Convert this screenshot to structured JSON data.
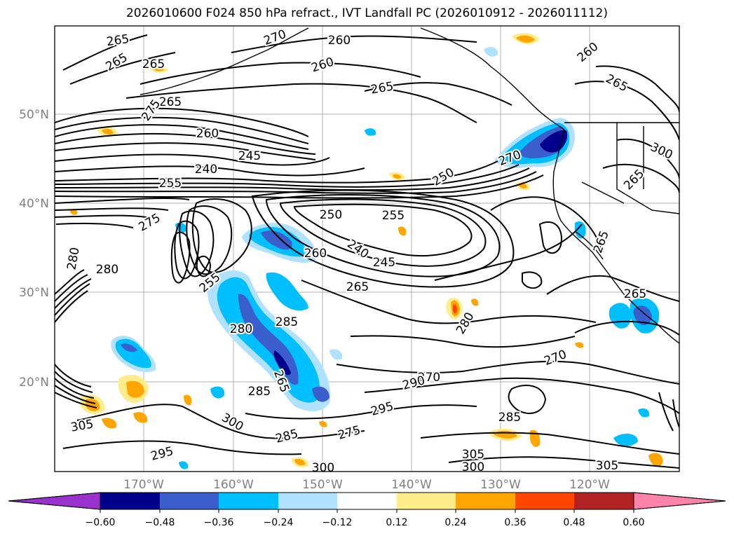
{
  "title": "2026010600 F024 850 hPa refract., IVT Landfall PC (2026010912 - 2026011112)",
  "lat_labels": [
    "50°N",
    "40°N",
    "30°N",
    "20°N"
  ],
  "lon_labels": [
    "170°W",
    "160°W",
    "150°W",
    "140°W",
    "130°W",
    "120°W"
  ],
  "colorbar": {
    "tick_labels": [
      "−0.60",
      "−0.48",
      "−0.36",
      "−0.24",
      "−0.12",
      "0.12",
      "0.24",
      "0.36",
      "0.48",
      "0.60"
    ],
    "colors": [
      "#9932CC",
      "#00008B",
      "#3A5FCD",
      "#00BFFF",
      "#B0E2FF",
      "#FFFFFF",
      "#FFEC8B",
      "#FFA500",
      "#FF4500",
      "#B22222",
      "#FF82AB"
    ]
  },
  "contour_labels": [
    "265",
    "265",
    "265",
    "265",
    "270",
    "275",
    "260",
    "245",
    "240",
    "255",
    "275",
    "280",
    "260",
    "260",
    "265",
    "260",
    "265",
    "250",
    "270",
    "250",
    "255",
    "260",
    "240",
    "245",
    "265",
    "255",
    "280",
    "280",
    "285",
    "285",
    "265",
    "270",
    "290",
    "295",
    "300",
    "285",
    "275",
    "280",
    "285",
    "270",
    "265",
    "265",
    "265",
    "300",
    "305",
    "300",
    "305",
    "295",
    "300",
    "305"
  ]
}
